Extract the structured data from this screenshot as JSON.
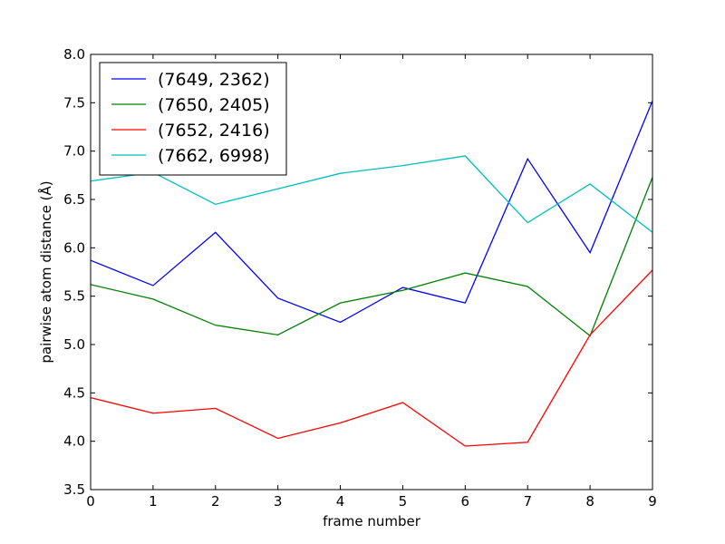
{
  "chart_data": {
    "type": "line",
    "xlabel": "frame number",
    "ylabel": "pairwise atom distance (Å)",
    "xlim": [
      0,
      9
    ],
    "ylim": [
      3.5,
      8.0
    ],
    "x": [
      0,
      1,
      2,
      3,
      4,
      5,
      6,
      7,
      8,
      9
    ],
    "xticks": [
      "0",
      "1",
      "2",
      "3",
      "4",
      "5",
      "6",
      "7",
      "8",
      "9"
    ],
    "yticks": [
      "3.5",
      "4.0",
      "4.5",
      "5.0",
      "5.5",
      "6.0",
      "6.5",
      "7.0",
      "7.5",
      "8.0"
    ],
    "yticks_values": [
      3.5,
      4.0,
      4.5,
      5.0,
      5.5,
      6.0,
      6.5,
      7.0,
      7.5,
      8.0
    ],
    "grid": false,
    "legend_position": "top-left",
    "series": [
      {
        "name": "(7649, 2362)",
        "color": "#0000ff",
        "values": [
          5.87,
          5.61,
          6.16,
          5.48,
          5.23,
          5.59,
          5.43,
          6.92,
          5.95,
          7.52
        ]
      },
      {
        "name": "(7650, 2405)",
        "color": "#008000",
        "values": [
          5.62,
          5.47,
          5.2,
          5.1,
          5.43,
          5.56,
          5.74,
          5.6,
          5.09,
          6.73
        ]
      },
      {
        "name": "(7652, 2416)",
        "color": "#ff0000",
        "values": [
          4.45,
          4.29,
          4.34,
          4.03,
          4.19,
          4.4,
          3.95,
          3.99,
          5.1,
          5.77
        ]
      },
      {
        "name": "(7662, 6998)",
        "color": "#00bfbf",
        "values": [
          6.69,
          6.78,
          6.45,
          6.61,
          6.77,
          6.85,
          6.95,
          6.26,
          6.66,
          6.16
        ]
      }
    ]
  }
}
